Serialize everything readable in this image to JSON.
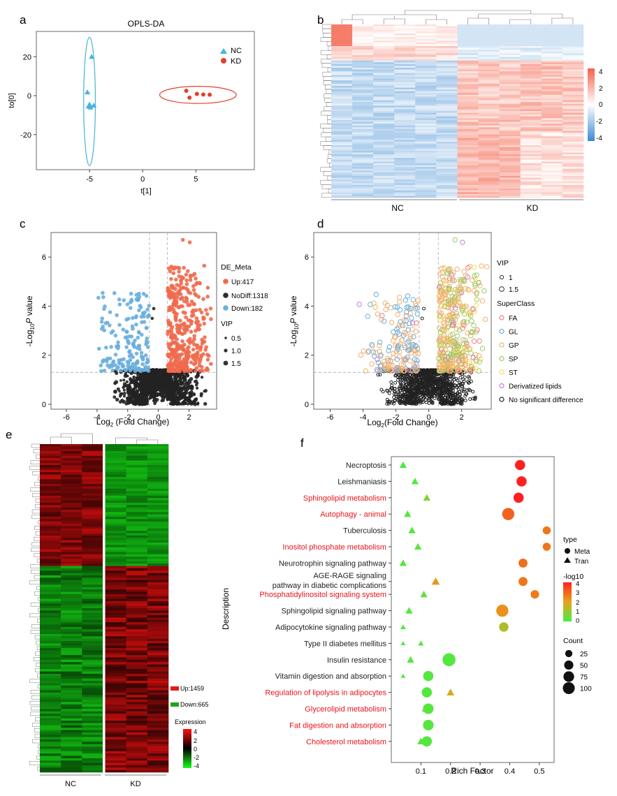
{
  "panel_labels": {
    "a": "a",
    "b": "b",
    "c": "c",
    "d": "d",
    "e": "e",
    "f": "f"
  },
  "chart_data": [
    {
      "id": "a",
      "type": "scatter",
      "title": "OPLS-DA",
      "xlabel": "t[1]",
      "ylabel": "to[0]",
      "xticks": [
        "-5",
        "0",
        "5"
      ],
      "yticks": [
        "20",
        "0",
        "-20"
      ],
      "xlim": [
        -10,
        10.5
      ],
      "ylim": [
        -38,
        33
      ],
      "legend": [
        {
          "name": "NC",
          "color": "#45b4d8",
          "marker": "triangle"
        },
        {
          "name": "KD",
          "color": "#e2412b",
          "marker": "circle"
        }
      ],
      "series": [
        {
          "name": "NC",
          "color": "#45b4d8",
          "points": [
            [
              -4.8,
              20
            ],
            [
              -5.2,
              1.8
            ],
            [
              -5.0,
              -4.5
            ],
            [
              -4.6,
              -5.0
            ],
            [
              -4.9,
              -6.0
            ],
            [
              -5.1,
              -5.5
            ]
          ],
          "ellipse": {
            "cx": -5.0,
            "cy": -3.0,
            "rx": 0.55,
            "ry": 33
          }
        },
        {
          "name": "KD",
          "color": "#e2412b",
          "points": [
            [
              4.1,
              2.5
            ],
            [
              5.1,
              0.9
            ],
            [
              4.4,
              -1.0
            ],
            [
              5.7,
              0.6
            ],
            [
              6.3,
              0.5
            ]
          ],
          "ellipse": {
            "cx": 5.2,
            "cy": 0.4,
            "rx": 3.6,
            "ry": 4.4
          }
        }
      ]
    },
    {
      "id": "b",
      "type": "heatmap",
      "groups": [
        "NC",
        "KD"
      ],
      "colorbar_ticks": [
        "4",
        "2",
        "0",
        "-2",
        "-4"
      ],
      "colorbar_range": [
        -4,
        4
      ]
    },
    {
      "id": "c",
      "type": "scatter",
      "xlabel": "Log2 (Fold Change)",
      "xlabel_main": "Log",
      "xlabel_sub": "2",
      "xlabel_rest": " (Fold Change)",
      "ylabel_main": "-Log",
      "ylabel_sub": "10",
      "ylabel_italic": "P",
      "ylabel_rest": " value",
      "xticks": [
        "-6",
        "-4",
        "-2",
        "0",
        "2"
      ],
      "yticks": [
        "0",
        "2",
        "4",
        "6"
      ],
      "xlim": [
        -7,
        3.8
      ],
      "ylim": [
        -0.2,
        7
      ],
      "thresholds": {
        "x": [
          -0.58,
          0.58
        ],
        "y": 1.3
      },
      "legend_title": "DE_Meta",
      "legend": [
        {
          "label": "Up:417",
          "color": "#f06a4e"
        },
        {
          "label": "NoDiff:1318",
          "color": "#2b2b2b"
        },
        {
          "label": "Down:182",
          "color": "#6aaedd"
        }
      ],
      "vip_title": "VIP",
      "vip_legend": [
        "0.5",
        "1.0",
        "1.5"
      ],
      "counts": {
        "up": 417,
        "nodiff": 1318,
        "down": 182
      }
    },
    {
      "id": "d",
      "type": "scatter",
      "xlabel": "Log2(Fold Change)",
      "xlabel_main": "Log",
      "xlabel_sub": "2",
      "xlabel_rest": "(Fold Change)",
      "ylabel_main": "-Log",
      "ylabel_sub": "10",
      "ylabel_italic": "P",
      "ylabel_rest": " value",
      "xticks": [
        "-6",
        "-4",
        "-2",
        "0",
        "2"
      ],
      "yticks": [
        "0",
        "2",
        "4",
        "6"
      ],
      "xlim": [
        -7,
        3.8
      ],
      "ylim": [
        -0.2,
        7
      ],
      "thresholds": {
        "x": [
          -0.58,
          0.58
        ],
        "y": 1.3
      },
      "vip_title": "VIP",
      "vip_legend": [
        "1",
        "1.5"
      ],
      "superclass_title": "SuperClass",
      "superclass_legend": [
        {
          "label": "FA",
          "color": "#f08080"
        },
        {
          "label": "GL",
          "color": "#6aaedd"
        },
        {
          "label": "GP",
          "color": "#f0b070"
        },
        {
          "label": "SP",
          "color": "#9ccc65"
        },
        {
          "label": "ST",
          "color": "#f5dc5a"
        },
        {
          "label": "Derivatized lipids",
          "color": "#c77cd6"
        },
        {
          "label": "No significant difference",
          "color": "#222222"
        }
      ]
    },
    {
      "id": "e",
      "type": "heatmap",
      "groups": [
        "NC",
        "KD"
      ],
      "up_label": "Up:1459",
      "down_label": "Down:665",
      "colorbar_title": "Expression",
      "colorbar_ticks": [
        "4",
        "2",
        "0",
        "-2",
        "-4"
      ],
      "colorbar_range": [
        -4,
        4
      ]
    },
    {
      "id": "f",
      "type": "scatter",
      "xlabel": "Rich Factor",
      "ylabel": "Description",
      "xticks": [
        "0.1",
        "0.2",
        "0.3",
        "0.4",
        "0.5"
      ],
      "xlim": [
        0.0,
        0.55
      ],
      "highlight_color": "#e8141a",
      "categories": [
        {
          "label": "Necroptosis",
          "highlight": false
        },
        {
          "label": "Leishmaniasis",
          "highlight": false
        },
        {
          "label": "Sphingolipid metabolism",
          "highlight": true
        },
        {
          "label": "Autophagy - animal",
          "highlight": true
        },
        {
          "label": "Tuberculosis",
          "highlight": false
        },
        {
          "label": "Inositol phosphate metabolism",
          "highlight": true
        },
        {
          "label": "Neurotrophin signaling pathway",
          "highlight": false
        },
        {
          "label": "AGE-RAGE signaling pathway in diabetic complications",
          "line1": "AGE-RAGE signaling",
          "line2": "pathway in diabetic complications",
          "highlight": false
        },
        {
          "label": "Phosphatidylinositol signaling system",
          "highlight": true
        },
        {
          "label": "Sphingolipid signaling pathway",
          "highlight": false
        },
        {
          "label": "Adipocytokine signaling pathway",
          "highlight": false
        },
        {
          "label": "Type II diabetes mellitus",
          "highlight": false
        },
        {
          "label": "Insulin resistance",
          "highlight": false
        },
        {
          "label": "Vitamin digestion and absorption",
          "highlight": false
        },
        {
          "label": "Regulation of lipolysis in adipocytes",
          "highlight": true
        },
        {
          "label": "Glycerolipid metabolism",
          "highlight": true
        },
        {
          "label": "Fat digestion and absorption",
          "highlight": true
        },
        {
          "label": "Cholesterol metabolism",
          "highlight": true
        }
      ],
      "meta_points": [
        {
          "cat": 0,
          "rf": 0.435,
          "log10": 4.1,
          "count": 50
        },
        {
          "cat": 1,
          "rf": 0.44,
          "log10": 4.0,
          "count": 50
        },
        {
          "cat": 2,
          "rf": 0.43,
          "log10": 4.1,
          "count": 50
        },
        {
          "cat": 3,
          "rf": 0.395,
          "log10": 3.0,
          "count": 80
        },
        {
          "cat": 4,
          "rf": 0.525,
          "log10": 2.7,
          "count": 25
        },
        {
          "cat": 5,
          "rf": 0.525,
          "log10": 2.7,
          "count": 25
        },
        {
          "cat": 6,
          "rf": 0.445,
          "log10": 2.8,
          "count": 35
        },
        {
          "cat": 7,
          "rf": 0.445,
          "log10": 2.7,
          "count": 35
        },
        {
          "cat": 8,
          "rf": 0.485,
          "log10": 2.6,
          "count": 30
        },
        {
          "cat": 9,
          "rf": 0.375,
          "log10": 2.3,
          "count": 80
        },
        {
          "cat": 10,
          "rf": 0.38,
          "log10": 1.3,
          "count": 40
        },
        {
          "cat": 12,
          "rf": 0.195,
          "log10": 0.2,
          "count": 95
        },
        {
          "cat": 13,
          "rf": 0.125,
          "log10": 0.2,
          "count": 50
        },
        {
          "cat": 14,
          "rf": 0.12,
          "log10": 0.2,
          "count": 50
        },
        {
          "cat": 15,
          "rf": 0.125,
          "log10": 0.2,
          "count": 55
        },
        {
          "cat": 16,
          "rf": 0.125,
          "log10": 0.2,
          "count": 55
        },
        {
          "cat": 17,
          "rf": 0.12,
          "log10": 0.2,
          "count": 50
        }
      ],
      "tran_points": [
        {
          "cat": 0,
          "rf": 0.04,
          "log10": 0.1,
          "count": 25
        },
        {
          "cat": 1,
          "rf": 0.08,
          "log10": 0.2,
          "count": 25
        },
        {
          "cat": 2,
          "rf": 0.12,
          "log10": 0.8,
          "count": 25
        },
        {
          "cat": 3,
          "rf": 0.055,
          "log10": 0.2,
          "count": 25
        },
        {
          "cat": 4,
          "rf": 0.07,
          "log10": 0.2,
          "count": 25
        },
        {
          "cat": 5,
          "rf": 0.09,
          "log10": 0.3,
          "count": 25
        },
        {
          "cat": 6,
          "rf": 0.04,
          "log10": 0.2,
          "count": 25
        },
        {
          "cat": 7,
          "rf": 0.15,
          "log10": 2.2,
          "count": 35
        },
        {
          "cat": 8,
          "rf": 0.11,
          "log10": 0.4,
          "count": 25
        },
        {
          "cat": 9,
          "rf": 0.06,
          "log10": 0.2,
          "count": 25
        },
        {
          "cat": 10,
          "rf": 0.04,
          "log10": 0.1,
          "count": 10
        },
        {
          "cat": 11,
          "rf": 0.04,
          "log10": 0.1,
          "count": 5
        },
        {
          "cat": 11,
          "rf": 0.1,
          "log10": 0.2,
          "count": 10
        },
        {
          "cat": 12,
          "rf": 0.065,
          "log10": 0.2,
          "count": 25
        },
        {
          "cat": 13,
          "rf": 0.04,
          "log10": 0.1,
          "count": 5
        },
        {
          "cat": 14,
          "rf": 0.2,
          "log10": 1.8,
          "count": 30
        },
        {
          "cat": 15,
          "rf": 0.115,
          "log10": 0.3,
          "count": 25
        },
        {
          "cat": 16,
          "rf": 0.12,
          "log10": 0.3,
          "count": 25
        },
        {
          "cat": 17,
          "rf": 0.1,
          "log10": 0.3,
          "count": 25
        }
      ],
      "legend_type_title": "type",
      "legend_type": [
        "Meta",
        "Tran"
      ],
      "legend_color_title": "-log10",
      "legend_color_ticks": [
        "4",
        "3",
        "2",
        "1",
        "0"
      ],
      "legend_color_range": [
        0,
        4
      ],
      "legend_count_title": "Count",
      "legend_count": [
        25,
        50,
        75,
        100
      ]
    }
  ]
}
